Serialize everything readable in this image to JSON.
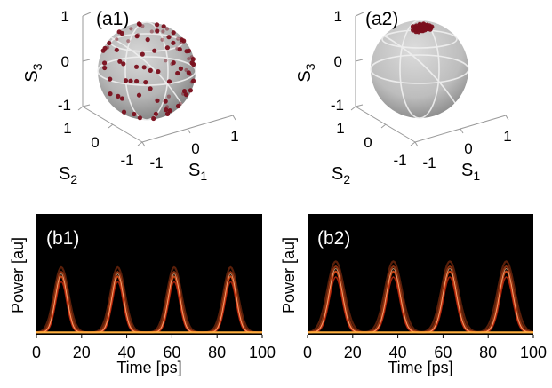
{
  "figure_colors": {
    "sphere_fill": "#b9b9b9",
    "sphere_shade": "#8c8c8c",
    "sphere_grid": "#f2f2f2",
    "point_color": "#7a0f1c",
    "trace_background": "#000000",
    "trace_hot": "#ff5a1e",
    "trace_core": "#ffd0a0",
    "baseline": "#ffb040"
  },
  "chart_data": [
    {
      "type": "scatter",
      "panel_label": "(a1)",
      "kind": "poincare-sphere",
      "axes": [
        {
          "name": "S",
          "sub": "1",
          "ticks": [
            "-1",
            "0",
            "1"
          ]
        },
        {
          "name": "S",
          "sub": "2",
          "ticks": [
            "-1",
            "0",
            "1"
          ]
        },
        {
          "name": "S",
          "sub": "3",
          "ticks": [
            "-1",
            "0",
            "1"
          ]
        }
      ],
      "points": [
        [
          0.12,
          0.95,
          0.28
        ],
        [
          -0.45,
          0.78,
          0.43
        ],
        [
          0.71,
          0.52,
          0.47
        ],
        [
          0.88,
          -0.12,
          0.46
        ],
        [
          -0.83,
          0.21,
          0.52
        ],
        [
          0.33,
          -0.62,
          0.71
        ],
        [
          -0.21,
          0.34,
          0.91
        ],
        [
          0.55,
          0.19,
          0.81
        ],
        [
          -0.61,
          -0.49,
          0.62
        ],
        [
          0.02,
          -0.28,
          0.96
        ],
        [
          0.93,
          0.31,
          0.19
        ],
        [
          -0.95,
          -0.17,
          0.26
        ],
        [
          0.41,
          0.85,
          -0.33
        ],
        [
          -0.36,
          0.9,
          -0.24
        ],
        [
          0.78,
          -0.55,
          0.3
        ],
        [
          -0.72,
          0.66,
          0.21
        ],
        [
          0.19,
          -0.94,
          0.28
        ],
        [
          -0.11,
          0.98,
          0.16
        ],
        [
          0.62,
          0.71,
          -0.34
        ],
        [
          0.97,
          0.05,
          -0.22
        ],
        [
          -0.89,
          0.38,
          -0.25
        ],
        [
          0.48,
          -0.31,
          0.82
        ],
        [
          -0.29,
          -0.58,
          0.76
        ],
        [
          0.08,
          0.64,
          0.76
        ],
        [
          0.84,
          0.44,
          -0.31
        ],
        [
          -0.58,
          0.79,
          0.2
        ],
        [
          0.27,
          0.42,
          0.87
        ],
        [
          -0.74,
          -0.03,
          0.67
        ],
        [
          0.68,
          -0.23,
          0.7
        ],
        [
          -0.14,
          -0.89,
          0.43
        ],
        [
          0.95,
          -0.25,
          0.17
        ],
        [
          -0.47,
          0.52,
          0.71
        ],
        [
          0.23,
          0.91,
          0.34
        ],
        [
          0.59,
          0.61,
          0.53
        ],
        [
          -0.33,
          0.12,
          0.94
        ],
        [
          0.12,
          0.21,
          0.97
        ],
        [
          -0.8,
          0.56,
          0.2
        ],
        [
          0.36,
          -0.83,
          0.42
        ],
        [
          -0.52,
          -0.77,
          0.37
        ],
        [
          0.81,
          0.19,
          0.55
        ],
        [
          0.05,
          0.77,
          -0.63
        ],
        [
          -0.27,
          0.72,
          -0.64
        ],
        [
          0.52,
          0.48,
          -0.71
        ],
        [
          0.74,
          0.27,
          -0.62
        ],
        [
          -0.62,
          0.43,
          -0.66
        ],
        [
          0.9,
          -0.37,
          -0.22
        ],
        [
          -0.97,
          0.06,
          -0.24
        ],
        [
          0.31,
          0.93,
          -0.19
        ],
        [
          -0.18,
          0.94,
          -0.29
        ],
        [
          0.67,
          0.69,
          0.27
        ],
        [
          -0.69,
          0.71,
          -0.1
        ],
        [
          0.99,
          0.11,
          0.06
        ],
        [
          -0.99,
          0.08,
          0.11
        ],
        [
          0.16,
          0.53,
          -0.83
        ],
        [
          -0.43,
          0.37,
          -0.82
        ],
        [
          0.43,
          0.13,
          -0.89
        ],
        [
          0.62,
          -0.08,
          -0.78
        ],
        [
          -0.71,
          0.19,
          -0.68
        ],
        [
          0.86,
          0.46,
          0.22
        ],
        [
          -0.86,
          0.47,
          0.19
        ],
        [
          0.38,
          0.66,
          0.65
        ],
        [
          -0.23,
          0.61,
          0.76
        ],
        [
          0.71,
          -0.42,
          0.56
        ],
        [
          -0.41,
          -0.31,
          0.86
        ],
        [
          0.17,
          -0.52,
          0.84
        ],
        [
          0.58,
          -0.64,
          0.51
        ],
        [
          -0.67,
          -0.62,
          0.41
        ],
        [
          0.92,
          -0.06,
          0.39
        ],
        [
          -0.91,
          -0.23,
          0.34
        ],
        [
          0.08,
          0.86,
          0.5
        ],
        [
          -0.54,
          0.68,
          0.49
        ],
        [
          0.46,
          0.87,
          0.17
        ],
        [
          0.27,
          0.76,
          -0.59
        ],
        [
          -0.09,
          0.83,
          -0.55
        ],
        [
          0.79,
          0.57,
          -0.22
        ],
        [
          -0.51,
          0.86,
          0.06
        ],
        [
          0.94,
          0.24,
          -0.24
        ],
        [
          -0.93,
          0.29,
          -0.22
        ],
        [
          0.35,
          0.34,
          -0.87
        ],
        [
          -0.12,
          0.42,
          -0.9
        ],
        [
          0.66,
          0.33,
          0.67
        ],
        [
          0.12,
          -0.74,
          0.66
        ],
        [
          -0.31,
          0.86,
          0.4
        ],
        [
          0.51,
          -0.11,
          0.85
        ],
        [
          -0.81,
          0.31,
          0.5
        ],
        [
          0.84,
          -0.51,
          -0.18
        ],
        [
          -0.38,
          -0.87,
          0.31
        ],
        [
          0.29,
          0.55,
          0.78
        ],
        [
          0.74,
          0.64,
          0.2
        ],
        [
          -0.66,
          0.57,
          0.49
        ]
      ]
    },
    {
      "type": "scatter",
      "panel_label": "(a2)",
      "kind": "poincare-sphere",
      "axes": [
        {
          "name": "S",
          "sub": "1",
          "ticks": [
            "-1",
            "0",
            "1"
          ]
        },
        {
          "name": "S",
          "sub": "2",
          "ticks": [
            "-1",
            "0",
            "1"
          ]
        },
        {
          "name": "S",
          "sub": "3",
          "ticks": [
            "-1",
            "0",
            "1"
          ]
        }
      ],
      "points": [
        [
          0.02,
          0.04,
          0.99
        ],
        [
          -0.05,
          0.08,
          0.99
        ],
        [
          0.07,
          0.11,
          0.99
        ],
        [
          0.1,
          -0.02,
          0.99
        ],
        [
          -0.09,
          -0.03,
          0.99
        ],
        [
          0.04,
          0.14,
          0.99
        ],
        [
          -0.11,
          0.12,
          0.99
        ],
        [
          0.13,
          0.06,
          0.99
        ],
        [
          -0.02,
          0.17,
          0.98
        ],
        [
          0.06,
          -0.08,
          0.99
        ],
        [
          -0.07,
          0.05,
          0.99
        ],
        [
          0.16,
          0.12,
          0.98
        ],
        [
          -0.14,
          0.03,
          0.99
        ],
        [
          0.01,
          0.1,
          0.99
        ],
        [
          0.11,
          0.16,
          0.98
        ],
        [
          -0.04,
          -0.06,
          0.99
        ],
        [
          0.18,
          0.02,
          0.98
        ],
        [
          -0.16,
          0.09,
          0.98
        ],
        [
          0.08,
          0.2,
          0.98
        ],
        [
          -0.08,
          0.19,
          0.98
        ],
        [
          0.03,
          -0.03,
          1.0
        ],
        [
          0.14,
          -0.05,
          0.99
        ],
        [
          -0.12,
          -0.07,
          0.99
        ],
        [
          0.2,
          0.08,
          0.98
        ],
        [
          -0.19,
          0.14,
          0.97
        ],
        [
          0.05,
          0.07,
          1.0
        ],
        [
          -0.03,
          0.13,
          0.99
        ],
        [
          0.09,
          0.03,
          1.0
        ],
        [
          -0.06,
          0.21,
          0.98
        ],
        [
          0.12,
          0.22,
          0.97
        ],
        [
          0.17,
          0.17,
          0.97
        ],
        [
          -0.15,
          0.18,
          0.97
        ],
        [
          0.0,
          0.2,
          0.98
        ],
        [
          0.22,
          0.13,
          0.97
        ],
        [
          -0.21,
          0.06,
          0.98
        ],
        [
          0.06,
          0.17,
          0.98
        ],
        [
          -0.1,
          0.15,
          0.98
        ],
        [
          0.15,
          0.1,
          0.98
        ],
        [
          -0.01,
          0.07,
          1.0
        ],
        [
          0.1,
          0.13,
          0.99
        ]
      ]
    },
    {
      "type": "line",
      "panel_label": "(b1)",
      "xlabel": "Time [ps]",
      "ylabel": "Power [au]",
      "xlim": [
        0,
        100
      ],
      "ylim": [
        0,
        1
      ],
      "x_ticks": [
        "0",
        "20",
        "40",
        "60",
        "80",
        "100"
      ],
      "baseline": 0.02,
      "pulses": [
        {
          "center": 11,
          "peak": 0.55,
          "fwhm": 6
        },
        {
          "center": 36,
          "peak": 0.55,
          "fwhm": 6
        },
        {
          "center": 61,
          "peak": 0.55,
          "fwhm": 6
        },
        {
          "center": 86,
          "peak": 0.55,
          "fwhm": 6
        }
      ]
    },
    {
      "type": "line",
      "panel_label": "(b2)",
      "xlabel": "Time [ps]",
      "ylabel": "Power [au]",
      "xlim": [
        0,
        100
      ],
      "ylim": [
        0,
        1
      ],
      "x_ticks": [
        "0",
        "20",
        "40",
        "60",
        "80",
        "100"
      ],
      "baseline": 0.02,
      "pulses": [
        {
          "center": 12.5,
          "peak": 0.6,
          "fwhm": 7
        },
        {
          "center": 38,
          "peak": 0.6,
          "fwhm": 7
        },
        {
          "center": 63,
          "peak": 0.6,
          "fwhm": 7
        },
        {
          "center": 88,
          "peak": 0.6,
          "fwhm": 7
        }
      ]
    }
  ]
}
